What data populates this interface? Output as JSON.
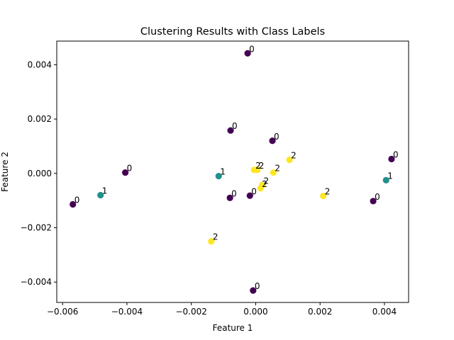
{
  "chart_data": {
    "type": "scatter",
    "title": "Clustering Results with Class Labels",
    "xlabel": "Feature 1",
    "ylabel": "Feature 2",
    "xlim": [
      -0.00618,
      0.00475
    ],
    "ylim": [
      -0.00475,
      0.00487
    ],
    "xticks": [
      -0.006,
      -0.004,
      -0.002,
      0.0,
      0.002,
      0.004
    ],
    "xtick_labels": [
      "−0.006",
      "−0.004",
      "−0.002",
      "0.000",
      "0.002",
      "0.004"
    ],
    "yticks": [
      -0.004,
      -0.002,
      0.0,
      0.002,
      0.004
    ],
    "ytick_labels": [
      "−0.004",
      "−0.002",
      "0.000",
      "0.002",
      "0.004"
    ],
    "grid": false,
    "colors": {
      "0": "#440154",
      "1": "#21918c",
      "2": "#fde725"
    },
    "points": [
      {
        "x": -0.00025,
        "y": 0.00442,
        "label": "0"
      },
      {
        "x": -0.00078,
        "y": 0.00158,
        "label": "0"
      },
      {
        "x": 0.00052,
        "y": 0.0012,
        "label": "0"
      },
      {
        "x": -0.00405,
        "y": 3e-05,
        "label": "0"
      },
      {
        "x": 0.00422,
        "y": 0.00053,
        "label": "0"
      },
      {
        "x": -0.00568,
        "y": -0.00114,
        "label": "0"
      },
      {
        "x": -0.0008,
        "y": -0.0009,
        "label": "0"
      },
      {
        "x": -0.00018,
        "y": -0.00082,
        "label": "0"
      },
      {
        "x": 0.00365,
        "y": -0.00102,
        "label": "0"
      },
      {
        "x": -8e-05,
        "y": -0.00431,
        "label": "0"
      },
      {
        "x": -0.00115,
        "y": -0.0001,
        "label": "1"
      },
      {
        "x": -0.00482,
        "y": -0.0008,
        "label": "1"
      },
      {
        "x": 0.00405,
        "y": -0.00025,
        "label": "1"
      },
      {
        "x": -5e-05,
        "y": 0.00013,
        "label": "2"
      },
      {
        "x": 5e-05,
        "y": 0.00013,
        "label": "2"
      },
      {
        "x": 0.00105,
        "y": 0.0005,
        "label": "2"
      },
      {
        "x": 0.00055,
        "y": 3e-05,
        "label": "2"
      },
      {
        "x": 0.0002,
        "y": -0.00043,
        "label": "2"
      },
      {
        "x": 0.00015,
        "y": -0.00055,
        "label": "2"
      },
      {
        "x": 0.0021,
        "y": -0.00083,
        "label": "2"
      },
      {
        "x": -0.00138,
        "y": -0.0025,
        "label": "2"
      }
    ]
  }
}
